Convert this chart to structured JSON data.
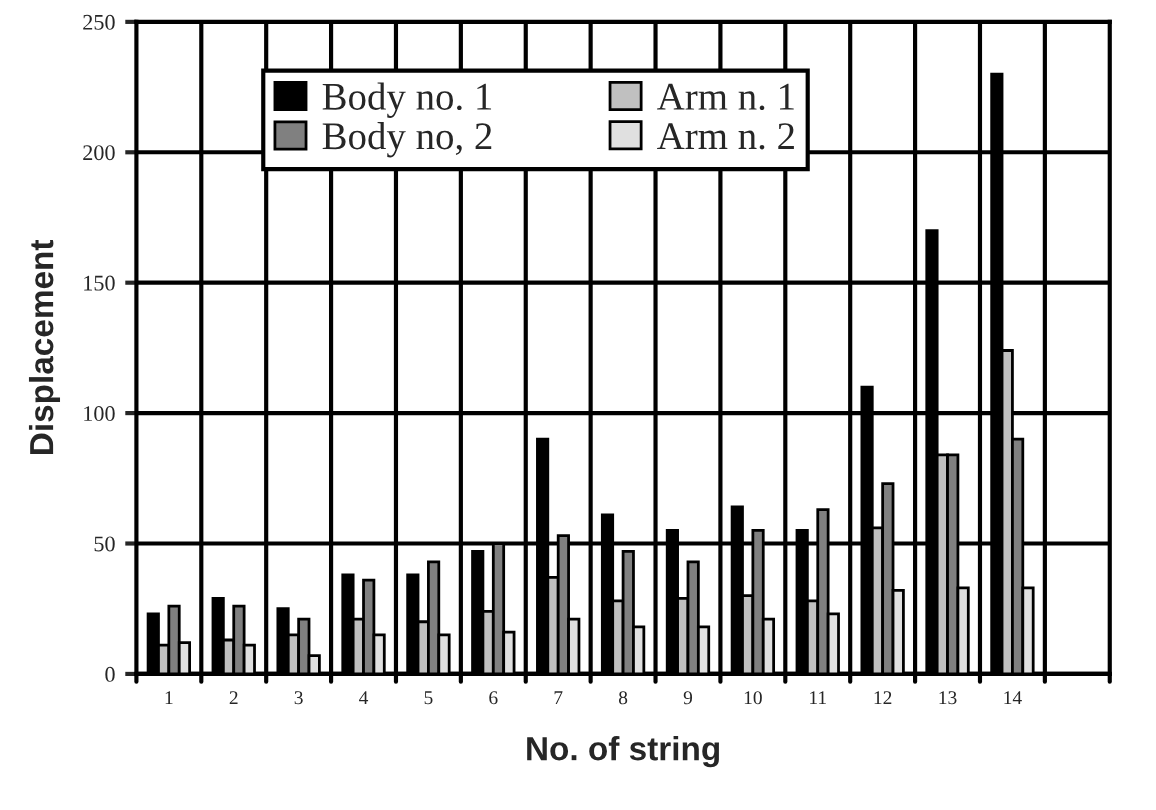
{
  "chart_data": {
    "type": "bar",
    "xlabel": "No. of string",
    "ylabel": "Displacement",
    "categories": [
      "1",
      "2",
      "3",
      "4",
      "5",
      "6",
      "7",
      "8",
      "9",
      "10",
      "11",
      "12",
      "13",
      "14",
      null
    ],
    "series": [
      {
        "name": "Body no. 1",
        "color": "#000000",
        "values": [
          23,
          29,
          25,
          38,
          38,
          47,
          90,
          61,
          55,
          64,
          55,
          110,
          170,
          230,
          null
        ]
      },
      {
        "name": "Arm n. 1",
        "color": "#c0c0c0",
        "values": [
          11,
          13,
          15,
          21,
          20,
          24,
          37,
          28,
          29,
          30,
          28,
          56,
          84,
          124,
          null
        ]
      },
      {
        "name": "Body no, 2",
        "color": "#808080",
        "values": [
          26,
          26,
          21,
          36,
          43,
          50,
          53,
          47,
          43,
          55,
          63,
          73,
          84,
          90,
          null
        ]
      },
      {
        "name": "Arm n. 2",
        "color": "#e0e0e0",
        "values": [
          12,
          11,
          7,
          15,
          15,
          16,
          21,
          18,
          18,
          21,
          23,
          32,
          33,
          33,
          null
        ]
      }
    ],
    "ylim": [
      0,
      250
    ],
    "yticks": [
      0,
      50,
      100,
      150,
      200,
      250
    ],
    "grid": true,
    "legend": "top"
  }
}
